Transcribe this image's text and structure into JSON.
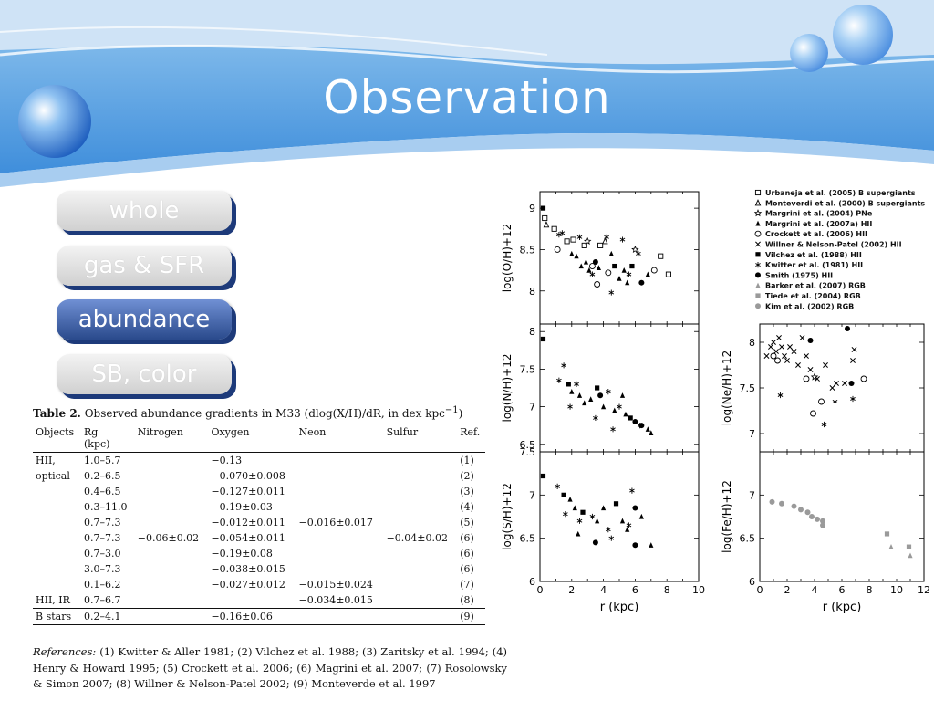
{
  "slide": {
    "title": "Observation"
  },
  "nav": [
    {
      "label": "whole",
      "active": false
    },
    {
      "label": "gas & SFR",
      "active": false
    },
    {
      "label": "abundance",
      "active": true
    },
    {
      "label": "SB, color",
      "active": false
    }
  ],
  "table": {
    "caption_label": "Table 2.",
    "caption_text": "Observed abundance gradients in M33 (dlog(X/H)/dR, in  dex kpc",
    "caption_sup": "−1",
    "caption_end": ")",
    "headers": [
      "Objects",
      "Rg",
      "Nitrogen",
      "Oxygen",
      "Neon",
      "Sulfur",
      "Ref."
    ],
    "rg_unit": "(kpc)",
    "rows": [
      {
        "obj": "HII,",
        "rg": "1.0–5.7",
        "n": "",
        "o": "−0.13",
        "ne": "",
        "s": "",
        "ref": "(1)"
      },
      {
        "obj": "optical",
        "rg": "0.2–6.5",
        "n": "",
        "o": "−0.070±0.008",
        "ne": "",
        "s": "",
        "ref": "(2)"
      },
      {
        "obj": "",
        "rg": "0.4–6.5",
        "n": "",
        "o": "−0.127±0.011",
        "ne": "",
        "s": "",
        "ref": "(3)"
      },
      {
        "obj": "",
        "rg": "0.3–11.0",
        "n": "",
        "o": "−0.19±0.03",
        "ne": "",
        "s": "",
        "ref": "(4)"
      },
      {
        "obj": "",
        "rg": "0.7–7.3",
        "n": "",
        "o": "−0.012±0.011",
        "ne": "−0.016±0.017",
        "s": "",
        "ref": "(5)"
      },
      {
        "obj": "",
        "rg": "0.7–7.3",
        "n": "−0.06±0.02",
        "o": "−0.054±0.011",
        "ne": "",
        "s": "−0.04±0.02",
        "ref": "(6)"
      },
      {
        "obj": "",
        "rg": "0.7–3.0",
        "n": "",
        "o": "−0.19±0.08",
        "ne": "",
        "s": "",
        "ref": "(6)"
      },
      {
        "obj": "",
        "rg": "3.0–7.3",
        "n": "",
        "o": "−0.038±0.015",
        "ne": "",
        "s": "",
        "ref": "(6)"
      },
      {
        "obj": "",
        "rg": "0.1–6.2",
        "n": "",
        "o": "−0.027±0.012",
        "ne": "−0.015±0.024",
        "s": "",
        "ref": "(7)"
      },
      {
        "obj": "HII, IR",
        "rg": "0.7–6.7",
        "n": "",
        "o": "",
        "ne": "−0.034±0.015",
        "s": "",
        "ref": "(8)"
      },
      {
        "obj": "B stars",
        "rg": "0.2–4.1",
        "n": "",
        "o": "−0.16±0.06",
        "ne": "",
        "s": "",
        "ref": "(9)"
      }
    ]
  },
  "references": {
    "label": "References:",
    "text": "(1) Kwitter & Aller 1981; (2) Vilchez et al. 1988; (3) Zaritsky et al. 1994; (4) Henry & Howard 1995; (5) Crockett et al. 2006; (6) Magrini et al. 2007; (7) Rosolowsky & Simon 2007; (8) Willner & Nelson-Patel 2002; (9) Monteverde et al. 1997"
  },
  "legend": [
    {
      "symbol": "open-square",
      "label": "Urbaneja et al. (2005) B supergiants"
    },
    {
      "symbol": "open-triangle",
      "label": "Monteverdi et al. (2000) B supergiants"
    },
    {
      "symbol": "open-star",
      "label": "Margrini et al. (2004) PNe"
    },
    {
      "symbol": "filled-triangle",
      "label": "Margrini et al. (2007a) HII"
    },
    {
      "symbol": "open-circle",
      "label": "Crockett et al. (2006) HII"
    },
    {
      "symbol": "cross",
      "label": "Willner & Nelson-Patel (2002) HII"
    },
    {
      "symbol": "filled-square",
      "label": "Vilchez et al. (1988) HII"
    },
    {
      "symbol": "asterisk",
      "label": "Kwitter et al. (1981) HII"
    },
    {
      "symbol": "filled-circle",
      "label": "Smith (1975) HII"
    },
    {
      "symbol": "gray-triangle",
      "label": "Barker et al. (2007) RGB"
    },
    {
      "symbol": "gray-square",
      "label": "Tiede et al. (2004) RGB"
    },
    {
      "symbol": "gray-circle",
      "label": "Kim et al. (2002) RGB"
    }
  ],
  "chart_data": [
    {
      "type": "scatter",
      "ylabel": "log(O/H)+12",
      "xlim": [
        0,
        10
      ],
      "ylim": [
        7.6,
        9.2
      ],
      "yticks": [
        8,
        8.5,
        9
      ],
      "points": [
        {
          "x": 0.2,
          "y": 9.0,
          "s": "filled-square"
        },
        {
          "x": 0.3,
          "y": 8.88,
          "s": "open-square"
        },
        {
          "x": 0.4,
          "y": 8.8,
          "s": "open-triangle"
        },
        {
          "x": 0.9,
          "y": 8.75,
          "s": "open-square"
        },
        {
          "x": 1.2,
          "y": 8.68,
          "s": "asterisk"
        },
        {
          "x": 1.4,
          "y": 8.7,
          "s": "asterisk"
        },
        {
          "x": 1.7,
          "y": 8.6,
          "s": "open-square"
        },
        {
          "x": 1.1,
          "y": 8.5,
          "s": "open-circle"
        },
        {
          "x": 2.1,
          "y": 8.62,
          "s": "open-square"
        },
        {
          "x": 2.5,
          "y": 8.65,
          "s": "asterisk"
        },
        {
          "x": 2.8,
          "y": 8.55,
          "s": "open-square"
        },
        {
          "x": 3.0,
          "y": 8.6,
          "s": "open-star"
        },
        {
          "x": 2.0,
          "y": 8.45,
          "s": "filled-triangle"
        },
        {
          "x": 2.3,
          "y": 8.42,
          "s": "filled-triangle"
        },
        {
          "x": 2.6,
          "y": 8.3,
          "s": "filled-triangle"
        },
        {
          "x": 2.9,
          "y": 8.35,
          "s": "filled-triangle"
        },
        {
          "x": 3.1,
          "y": 8.25,
          "s": "filled-triangle"
        },
        {
          "x": 3.3,
          "y": 8.3,
          "s": "open-circle"
        },
        {
          "x": 3.5,
          "y": 8.35,
          "s": "filled-circle"
        },
        {
          "x": 3.7,
          "y": 8.28,
          "s": "filled-triangle"
        },
        {
          "x": 3.8,
          "y": 8.55,
          "s": "open-square"
        },
        {
          "x": 4.1,
          "y": 8.6,
          "s": "open-triangle"
        },
        {
          "x": 4.3,
          "y": 8.22,
          "s": "open-circle"
        },
        {
          "x": 4.5,
          "y": 8.45,
          "s": "filled-triangle"
        },
        {
          "x": 4.7,
          "y": 8.3,
          "s": "filled-square"
        },
        {
          "x": 5.0,
          "y": 8.15,
          "s": "filled-triangle"
        },
        {
          "x": 5.3,
          "y": 8.25,
          "s": "filled-triangle"
        },
        {
          "x": 5.6,
          "y": 8.2,
          "s": "asterisk"
        },
        {
          "x": 5.8,
          "y": 8.3,
          "s": "filled-square"
        },
        {
          "x": 6.0,
          "y": 8.5,
          "s": "open-star"
        },
        {
          "x": 6.2,
          "y": 8.45,
          "s": "asterisk"
        },
        {
          "x": 6.4,
          "y": 8.1,
          "s": "filled-circle"
        },
        {
          "x": 6.8,
          "y": 8.2,
          "s": "filled-triangle"
        },
        {
          "x": 7.2,
          "y": 8.25,
          "s": "open-circle"
        },
        {
          "x": 7.6,
          "y": 8.42,
          "s": "open-square"
        },
        {
          "x": 8.1,
          "y": 8.2,
          "s": "open-square"
        },
        {
          "x": 3.6,
          "y": 8.08,
          "s": "open-circle"
        },
        {
          "x": 4.5,
          "y": 7.98,
          "s": "asterisk"
        },
        {
          "x": 5.5,
          "y": 8.1,
          "s": "filled-triangle"
        },
        {
          "x": 5.2,
          "y": 8.62,
          "s": "asterisk"
        },
        {
          "x": 4.2,
          "y": 8.65,
          "s": "asterisk"
        },
        {
          "x": 3.3,
          "y": 8.2,
          "s": "asterisk"
        }
      ]
    },
    {
      "type": "scatter",
      "ylabel": "log(N/H)+12",
      "xlim": [
        0,
        10
      ],
      "ylim": [
        6.4,
        8.1
      ],
      "yticks": [
        6.5,
        7,
        7.5,
        8
      ],
      "points": [
        {
          "x": 0.2,
          "y": 7.9,
          "s": "filled-square"
        },
        {
          "x": 1.2,
          "y": 7.35,
          "s": "asterisk"
        },
        {
          "x": 1.5,
          "y": 7.55,
          "s": "asterisk"
        },
        {
          "x": 1.8,
          "y": 7.3,
          "s": "filled-square"
        },
        {
          "x": 2.0,
          "y": 7.2,
          "s": "filled-triangle"
        },
        {
          "x": 2.3,
          "y": 7.3,
          "s": "asterisk"
        },
        {
          "x": 2.5,
          "y": 7.15,
          "s": "filled-triangle"
        },
        {
          "x": 2.8,
          "y": 7.05,
          "s": "filled-triangle"
        },
        {
          "x": 1.9,
          "y": 7.0,
          "s": "asterisk"
        },
        {
          "x": 3.2,
          "y": 7.1,
          "s": "filled-triangle"
        },
        {
          "x": 3.6,
          "y": 7.25,
          "s": "filled-square"
        },
        {
          "x": 3.8,
          "y": 7.15,
          "s": "filled-circle"
        },
        {
          "x": 4.0,
          "y": 7.0,
          "s": "filled-triangle"
        },
        {
          "x": 4.3,
          "y": 7.2,
          "s": "asterisk"
        },
        {
          "x": 4.7,
          "y": 6.95,
          "s": "filled-triangle"
        },
        {
          "x": 5.0,
          "y": 7.0,
          "s": "asterisk"
        },
        {
          "x": 5.4,
          "y": 6.9,
          "s": "filled-triangle"
        },
        {
          "x": 5.7,
          "y": 6.85,
          "s": "filled-square"
        },
        {
          "x": 6.0,
          "y": 6.8,
          "s": "filled-circle"
        },
        {
          "x": 6.3,
          "y": 6.75,
          "s": "asterisk"
        },
        {
          "x": 6.8,
          "y": 6.7,
          "s": "filled-triangle"
        },
        {
          "x": 7.0,
          "y": 6.65,
          "s": "filled-triangle"
        },
        {
          "x": 4.6,
          "y": 6.7,
          "s": "asterisk"
        },
        {
          "x": 5.2,
          "y": 7.15,
          "s": "filled-triangle"
        },
        {
          "x": 6.4,
          "y": 6.75,
          "s": "filled-circle"
        },
        {
          "x": 3.5,
          "y": 6.85,
          "s": "asterisk"
        }
      ]
    },
    {
      "type": "scatter",
      "ylabel": "log(S/H)+12",
      "xlabel": "r (kpc)",
      "xlim": [
        0,
        10
      ],
      "ylim": [
        6.0,
        7.5
      ],
      "xticks": [
        0,
        2,
        4,
        6,
        8,
        10
      ],
      "yticks": [
        6,
        6.5,
        7,
        7.5
      ],
      "points": [
        {
          "x": 0.2,
          "y": 7.22,
          "s": "filled-square"
        },
        {
          "x": 1.1,
          "y": 7.1,
          "s": "asterisk"
        },
        {
          "x": 1.5,
          "y": 7.0,
          "s": "filled-square"
        },
        {
          "x": 1.9,
          "y": 6.95,
          "s": "filled-triangle"
        },
        {
          "x": 2.2,
          "y": 6.85,
          "s": "filled-triangle"
        },
        {
          "x": 1.6,
          "y": 6.78,
          "s": "asterisk"
        },
        {
          "x": 2.5,
          "y": 6.7,
          "s": "asterisk"
        },
        {
          "x": 2.7,
          "y": 6.8,
          "s": "filled-square"
        },
        {
          "x": 3.3,
          "y": 6.75,
          "s": "asterisk"
        },
        {
          "x": 3.6,
          "y": 6.7,
          "s": "filled-triangle"
        },
        {
          "x": 4.0,
          "y": 6.85,
          "s": "filled-triangle"
        },
        {
          "x": 4.3,
          "y": 6.6,
          "s": "asterisk"
        },
        {
          "x": 4.8,
          "y": 6.9,
          "s": "filled-square"
        },
        {
          "x": 5.2,
          "y": 6.7,
          "s": "filled-triangle"
        },
        {
          "x": 5.6,
          "y": 6.65,
          "s": "asterisk"
        },
        {
          "x": 5.8,
          "y": 7.05,
          "s": "asterisk"
        },
        {
          "x": 6.0,
          "y": 6.85,
          "s": "filled-circle"
        },
        {
          "x": 6.4,
          "y": 6.75,
          "s": "filled-triangle"
        },
        {
          "x": 3.5,
          "y": 6.45,
          "s": "filled-circle"
        },
        {
          "x": 2.4,
          "y": 6.55,
          "s": "filled-triangle"
        },
        {
          "x": 6.0,
          "y": 6.42,
          "s": "filled-circle"
        },
        {
          "x": 7.0,
          "y": 6.42,
          "s": "filled-triangle"
        },
        {
          "x": 4.5,
          "y": 6.5,
          "s": "asterisk"
        },
        {
          "x": 5.5,
          "y": 6.6,
          "s": "filled-triangle"
        }
      ]
    },
    {
      "type": "scatter",
      "ylabel": "log(Ne/H)+12",
      "xlim": [
        0,
        12
      ],
      "ylim": [
        6.8,
        8.2
      ],
      "yticks": [
        7,
        7.5,
        8
      ],
      "points": [
        {
          "x": 0.5,
          "y": 7.85,
          "s": "cross"
        },
        {
          "x": 0.8,
          "y": 7.95,
          "s": "cross"
        },
        {
          "x": 1.0,
          "y": 8.0,
          "s": "cross"
        },
        {
          "x": 1.2,
          "y": 7.9,
          "s": "cross"
        },
        {
          "x": 1.4,
          "y": 8.05,
          "s": "cross"
        },
        {
          "x": 1.6,
          "y": 7.95,
          "s": "cross"
        },
        {
          "x": 1.8,
          "y": 7.85,
          "s": "cross"
        },
        {
          "x": 2.0,
          "y": 7.8,
          "s": "cross"
        },
        {
          "x": 2.2,
          "y": 7.95,
          "s": "cross"
        },
        {
          "x": 2.5,
          "y": 7.9,
          "s": "cross"
        },
        {
          "x": 2.8,
          "y": 7.75,
          "s": "cross"
        },
        {
          "x": 3.1,
          "y": 8.05,
          "s": "cross"
        },
        {
          "x": 3.4,
          "y": 7.85,
          "s": "cross"
        },
        {
          "x": 3.7,
          "y": 7.7,
          "s": "cross"
        },
        {
          "x": 4.2,
          "y": 7.6,
          "s": "cross"
        },
        {
          "x": 4.8,
          "y": 7.75,
          "s": "cross"
        },
        {
          "x": 5.3,
          "y": 7.5,
          "s": "cross"
        },
        {
          "x": 5.6,
          "y": 7.55,
          "s": "cross"
        },
        {
          "x": 6.2,
          "y": 7.55,
          "s": "cross"
        },
        {
          "x": 6.8,
          "y": 7.8,
          "s": "cross"
        },
        {
          "x": 6.9,
          "y": 7.92,
          "s": "cross"
        },
        {
          "x": 1.0,
          "y": 7.85,
          "s": "open-circle"
        },
        {
          "x": 1.3,
          "y": 7.8,
          "s": "open-circle"
        },
        {
          "x": 3.7,
          "y": 8.02,
          "s": "filled-circle"
        },
        {
          "x": 6.4,
          "y": 8.15,
          "s": "filled-circle"
        },
        {
          "x": 3.4,
          "y": 7.6,
          "s": "open-circle"
        },
        {
          "x": 3.9,
          "y": 7.22,
          "s": "open-circle"
        },
        {
          "x": 4.5,
          "y": 7.35,
          "s": "open-circle"
        },
        {
          "x": 5.5,
          "y": 7.35,
          "s": "asterisk"
        },
        {
          "x": 4.7,
          "y": 7.1,
          "s": "asterisk"
        },
        {
          "x": 6.7,
          "y": 7.55,
          "s": "filled-circle"
        },
        {
          "x": 7.6,
          "y": 7.6,
          "s": "open-circle"
        },
        {
          "x": 1.5,
          "y": 7.42,
          "s": "asterisk"
        },
        {
          "x": 6.8,
          "y": 7.38,
          "s": "asterisk"
        },
        {
          "x": 4.0,
          "y": 7.62,
          "s": "open-star"
        }
      ]
    },
    {
      "type": "scatter",
      "ylabel": "log(Fe/H)+12",
      "xlabel": "r (kpc)",
      "xlim": [
        0,
        12
      ],
      "ylim": [
        6.0,
        7.5
      ],
      "xticks": [
        0,
        2,
        4,
        6,
        8,
        10,
        12
      ],
      "yticks": [
        6,
        6.5,
        7
      ],
      "points": [
        {
          "x": 0.9,
          "y": 6.92,
          "s": "gray-circle"
        },
        {
          "x": 1.6,
          "y": 6.9,
          "s": "gray-circle"
        },
        {
          "x": 2.5,
          "y": 6.87,
          "s": "gray-circle"
        },
        {
          "x": 3.0,
          "y": 6.83,
          "s": "gray-circle"
        },
        {
          "x": 3.5,
          "y": 6.8,
          "s": "gray-circle"
        },
        {
          "x": 3.8,
          "y": 6.75,
          "s": "gray-circle"
        },
        {
          "x": 4.2,
          "y": 6.72,
          "s": "gray-circle"
        },
        {
          "x": 4.6,
          "y": 6.7,
          "s": "gray-circle"
        },
        {
          "x": 4.6,
          "y": 6.65,
          "s": "gray-circle"
        },
        {
          "x": 9.3,
          "y": 6.55,
          "s": "gray-square"
        },
        {
          "x": 9.6,
          "y": 6.4,
          "s": "gray-triangle"
        },
        {
          "x": 10.9,
          "y": 6.4,
          "s": "gray-square"
        },
        {
          "x": 11.0,
          "y": 6.3,
          "s": "gray-triangle"
        }
      ]
    }
  ]
}
